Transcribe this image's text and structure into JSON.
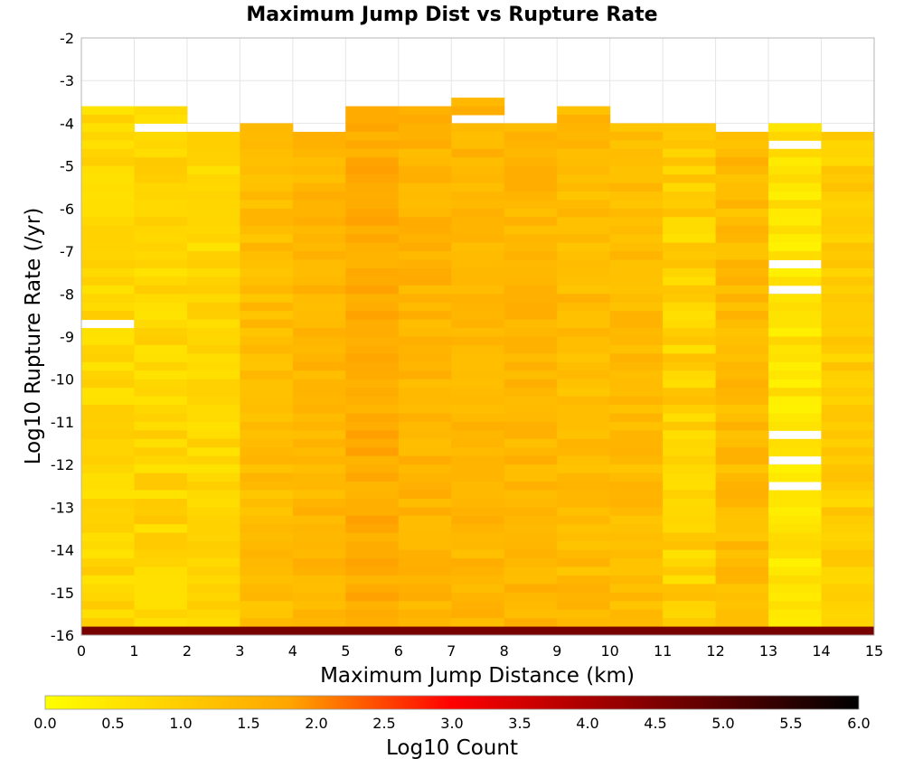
{
  "chart_data": {
    "type": "heatmap",
    "title": "Maximum Jump Dist vs Rupture Rate",
    "xlabel": "Maximum Jump Distance (km)",
    "ylabel": "Log10 Rupture Rate (/yr)",
    "xlim": [
      0,
      15
    ],
    "ylim": [
      -16,
      -2
    ],
    "x_ticks": [
      "0",
      "1",
      "2",
      "3",
      "4",
      "5",
      "6",
      "7",
      "8",
      "9",
      "10",
      "11",
      "12",
      "13",
      "14",
      "15"
    ],
    "y_ticks": [
      "-2",
      "-3",
      "-4",
      "-5",
      "-6",
      "-7",
      "-8",
      "-9",
      "-10",
      "-11",
      "-12",
      "-13",
      "-14",
      "-15",
      "-16"
    ],
    "grid": true,
    "x_bin_width_km": 1,
    "y_bin_height_log10": 0.2,
    "colorbar": {
      "label": "Log10 Count",
      "min": 0.0,
      "max": 6.0,
      "ticks": [
        "0.0",
        "0.5",
        "1.0",
        "1.5",
        "2.0",
        "2.5",
        "3.0",
        "3.5",
        "4.0",
        "4.5",
        "5.0",
        "5.5",
        "6.0"
      ],
      "colors": [
        "#ffff00",
        "#ffa500",
        "#ff0000",
        "#000000"
      ],
      "stops": [
        0.0,
        0.3,
        0.5,
        1.0
      ]
    },
    "columns": [
      {
        "x_start": 0,
        "top_log10_rate": -3.6,
        "base": 0.8,
        "variation": 0.25,
        "missing": [
          -8.6
        ]
      },
      {
        "x_start": 1,
        "top_log10_rate": -3.6,
        "base": 0.85,
        "variation": 0.3,
        "missing": [
          -4.0
        ]
      },
      {
        "x_start": 2,
        "top_log10_rate": -4.2,
        "base": 0.8,
        "variation": 0.25,
        "missing": []
      },
      {
        "x_start": 3,
        "top_log10_rate": -4.0,
        "base": 1.3,
        "variation": 0.2,
        "missing": []
      },
      {
        "x_start": 4,
        "top_log10_rate": -4.2,
        "base": 1.45,
        "variation": 0.2,
        "missing": []
      },
      {
        "x_start": 5,
        "top_log10_rate": -3.6,
        "base": 1.65,
        "variation": 0.2,
        "missing": []
      },
      {
        "x_start": 6,
        "top_log10_rate": -3.6,
        "base": 1.5,
        "variation": 0.2,
        "missing": []
      },
      {
        "x_start": 7,
        "top_log10_rate": -3.4,
        "base": 1.45,
        "variation": 0.2,
        "missing": [
          -3.8
        ]
      },
      {
        "x_start": 8,
        "top_log10_rate": -4.0,
        "base": 1.45,
        "variation": 0.2,
        "missing": []
      },
      {
        "x_start": 9,
        "top_log10_rate": -3.6,
        "base": 1.35,
        "variation": 0.25,
        "missing": []
      },
      {
        "x_start": 10,
        "top_log10_rate": -4.0,
        "base": 1.35,
        "variation": 0.2,
        "missing": []
      },
      {
        "x_start": 11,
        "top_log10_rate": -4.0,
        "base": 0.95,
        "variation": 0.35,
        "missing": []
      },
      {
        "x_start": 12,
        "top_log10_rate": -4.2,
        "base": 1.35,
        "variation": 0.25,
        "missing": []
      },
      {
        "x_start": 13,
        "top_log10_rate": -4.0,
        "base": 0.55,
        "variation": 0.3,
        "missing": [
          -4.4,
          -7.2,
          -7.8,
          -11.2,
          -11.8,
          -12.4
        ]
      },
      {
        "x_start": 14,
        "top_log10_rate": -4.2,
        "base": 1.0,
        "variation": 0.25,
        "missing": []
      }
    ],
    "bottom_row": {
      "y_range": [
        -16,
        -15.8
      ],
      "value": 4.6
    }
  }
}
